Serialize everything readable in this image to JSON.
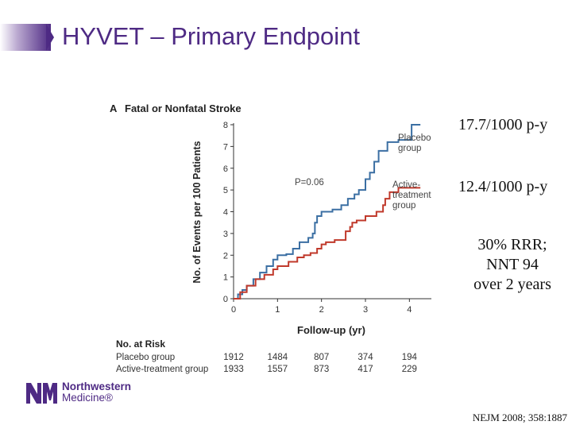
{
  "slide": {
    "title": "HYVET – Primary Endpoint",
    "rates": {
      "placebo": "17.7/1000 p-y",
      "active": "12.4/1000 p-y"
    },
    "rrr_lines": [
      "30% RRR;",
      "NNT 94",
      "over 2 years"
    ],
    "citation": "NEJM 2008; 358:1887",
    "logo": {
      "line1": "Northwestern",
      "line2": "Medicine®"
    }
  },
  "colors": {
    "title": "#4e2a84",
    "placebo": "#3b6fa3",
    "active": "#c0392b",
    "logo": "#4e2a84"
  },
  "chart_data": {
    "type": "line",
    "panel_letter": "A",
    "title": "Fatal or Nonfatal Stroke",
    "xlabel": "Follow-up (yr)",
    "ylabel": "No. of Events per 100 Patients",
    "xlim": [
      0,
      4.5
    ],
    "ylim": [
      0,
      8
    ],
    "xticks": [
      0,
      1,
      2,
      3,
      4
    ],
    "yticks": [
      0,
      1,
      2,
      3,
      4,
      5,
      6,
      7,
      8
    ],
    "grid": false,
    "annotation": "P=0.06",
    "series": [
      {
        "name": "Placebo group",
        "label_lines": [
          "Placebo",
          "group"
        ],
        "color": "#3b6fa3",
        "points": [
          [
            0,
            0
          ],
          [
            0.1,
            0.2
          ],
          [
            0.2,
            0.4
          ],
          [
            0.3,
            0.6
          ],
          [
            0.45,
            0.9
          ],
          [
            0.6,
            1.2
          ],
          [
            0.75,
            1.5
          ],
          [
            0.9,
            1.8
          ],
          [
            1,
            2
          ],
          [
            1.2,
            2.05
          ],
          [
            1.35,
            2.3
          ],
          [
            1.5,
            2.6
          ],
          [
            1.7,
            2.8
          ],
          [
            1.8,
            3
          ],
          [
            1.85,
            3.5
          ],
          [
            1.9,
            3.8
          ],
          [
            2,
            4
          ],
          [
            2.25,
            4.1
          ],
          [
            2.45,
            4.3
          ],
          [
            2.6,
            4.6
          ],
          [
            2.75,
            4.8
          ],
          [
            2.85,
            5
          ],
          [
            3,
            5.5
          ],
          [
            3.1,
            5.8
          ],
          [
            3.2,
            6.3
          ],
          [
            3.3,
            6.8
          ],
          [
            3.5,
            7.2
          ],
          [
            3.75,
            7.3
          ],
          [
            4.05,
            8
          ]
        ],
        "end_x": 4.25
      },
      {
        "name": "Active-treatment group",
        "label_lines": [
          "Active-",
          "treatment",
          "group"
        ],
        "color": "#c0392b",
        "points": [
          [
            0,
            0
          ],
          [
            0.15,
            0.3
          ],
          [
            0.3,
            0.6
          ],
          [
            0.5,
            0.9
          ],
          [
            0.7,
            1.1
          ],
          [
            0.9,
            1.35
          ],
          [
            1,
            1.5
          ],
          [
            1.25,
            1.7
          ],
          [
            1.45,
            1.9
          ],
          [
            1.6,
            2
          ],
          [
            1.75,
            2.1
          ],
          [
            1.9,
            2.3
          ],
          [
            2,
            2.5
          ],
          [
            2.1,
            2.6
          ],
          [
            2.3,
            2.7
          ],
          [
            2.55,
            3.1
          ],
          [
            2.65,
            3.3
          ],
          [
            2.7,
            3.5
          ],
          [
            2.8,
            3.6
          ],
          [
            3,
            3.8
          ],
          [
            3.25,
            4
          ],
          [
            3.4,
            4.3
          ],
          [
            3.45,
            4.6
          ],
          [
            3.55,
            4.9
          ],
          [
            3.75,
            5.1
          ],
          [
            4.05,
            5.1
          ]
        ],
        "end_x": 4.25
      }
    ],
    "risk_table": {
      "header": "No. at Risk",
      "rows": [
        {
          "label": "Placebo group",
          "values": [
            "1912",
            "1484",
            "807",
            "374",
            "194"
          ]
        },
        {
          "label": "Active-treatment group",
          "values": [
            "1933",
            "1557",
            "873",
            "417",
            "229"
          ]
        }
      ]
    }
  }
}
